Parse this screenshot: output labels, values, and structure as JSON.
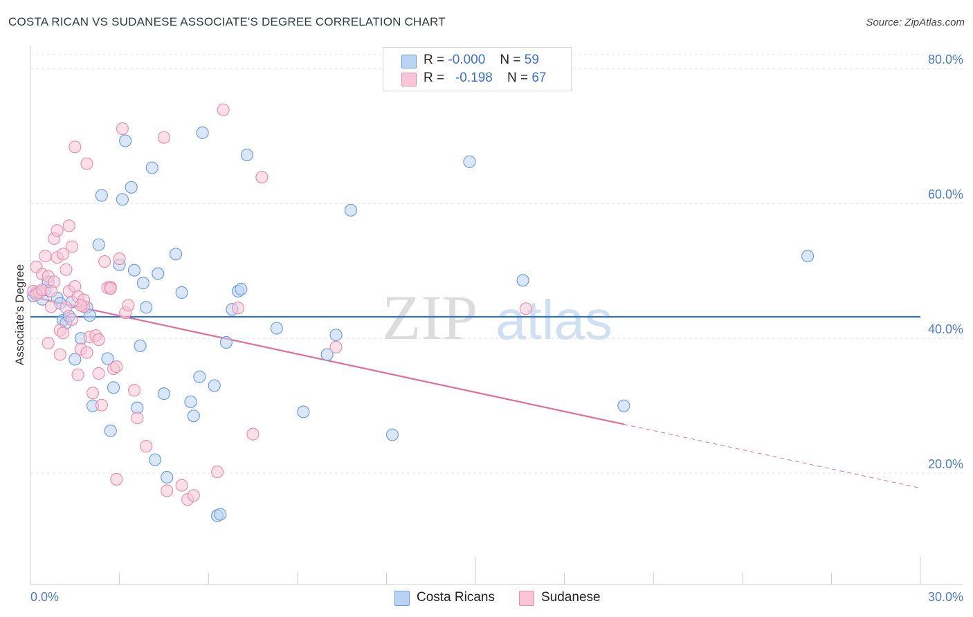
{
  "title": "COSTA RICAN VS SUDANESE ASSOCIATE'S DEGREE CORRELATION CHART",
  "source": "Source: ZipAtlas.com",
  "watermark": {
    "zip": "ZIP",
    "atlas": "atlas"
  },
  "legend": {
    "r_label": "R =",
    "n_label": "N =",
    "rows": [
      {
        "name": "Costa Ricans",
        "r": "-0.000",
        "n": "59",
        "fill": "#b9d3f3",
        "stroke": "#6d9ee0"
      },
      {
        "name": "Sudanese",
        "r": "-0.198",
        "n": "67",
        "fill": "#f8c6d6",
        "stroke": "#ea8fb0"
      }
    ]
  },
  "chart_data": {
    "type": "scatter",
    "title": "COSTA RICAN VS SUDANESE ASSOCIATE'S DEGREE CORRELATION CHART",
    "xlabel": "",
    "ylabel": "Associate's Degree",
    "xlim": [
      0,
      30
    ],
    "ylim": [
      3.5,
      83
    ],
    "x_tick_labels": {
      "0": "0.0%",
      "30": "30.0%"
    },
    "y_ticks": [
      20,
      40,
      60,
      80
    ],
    "y_tick_labels": [
      "20.0%",
      "40.0%",
      "60.0%",
      "80.0%"
    ],
    "grid": true,
    "legend_position": "bottom-center",
    "series": [
      {
        "name": "Costa Ricans",
        "color": "#6d9ee0",
        "fill": "#b9d3f3",
        "line_color": "#2e6fd0",
        "trend": {
          "x0": 0,
          "y0": 43.2,
          "x1": 30,
          "y1": 43.2,
          "dashed_from": null
        },
        "points": [
          [
            0.1,
            46.3
          ],
          [
            0.4,
            45.8
          ],
          [
            0.5,
            47.2
          ],
          [
            0.6,
            48.4
          ],
          [
            0.9,
            46.0
          ],
          [
            1.0,
            45.2
          ],
          [
            1.1,
            42.7
          ],
          [
            1.2,
            42.3
          ],
          [
            1.3,
            43.3
          ],
          [
            1.4,
            45.4
          ],
          [
            1.5,
            36.9
          ],
          [
            1.7,
            40.0
          ],
          [
            1.9,
            44.6
          ],
          [
            2.0,
            43.4
          ],
          [
            2.1,
            30.0
          ],
          [
            2.3,
            53.9
          ],
          [
            2.4,
            61.2
          ],
          [
            2.6,
            37.0
          ],
          [
            2.7,
            26.3
          ],
          [
            2.8,
            32.7
          ],
          [
            3.0,
            50.9
          ],
          [
            3.1,
            60.6
          ],
          [
            3.2,
            69.3
          ],
          [
            3.4,
            62.4
          ],
          [
            3.5,
            50.1
          ],
          [
            3.6,
            29.7
          ],
          [
            3.7,
            38.9
          ],
          [
            3.8,
            48.2
          ],
          [
            3.9,
            44.6
          ],
          [
            4.1,
            65.3
          ],
          [
            4.2,
            22.0
          ],
          [
            4.3,
            49.6
          ],
          [
            4.5,
            31.8
          ],
          [
            4.6,
            19.4
          ],
          [
            4.9,
            52.5
          ],
          [
            5.1,
            46.8
          ],
          [
            5.4,
            30.6
          ],
          [
            5.5,
            28.5
          ],
          [
            5.7,
            34.3
          ],
          [
            5.8,
            70.5
          ],
          [
            6.2,
            33.0
          ],
          [
            6.3,
            13.7
          ],
          [
            6.4,
            13.9
          ],
          [
            6.6,
            39.4
          ],
          [
            6.8,
            44.3
          ],
          [
            7.0,
            47.0
          ],
          [
            7.1,
            47.3
          ],
          [
            7.3,
            67.2
          ],
          [
            8.3,
            41.5
          ],
          [
            9.2,
            29.1
          ],
          [
            10.0,
            37.6
          ],
          [
            10.3,
            40.5
          ],
          [
            10.8,
            59.0
          ],
          [
            12.2,
            25.7
          ],
          [
            14.8,
            66.2
          ],
          [
            16.6,
            48.6
          ],
          [
            20.0,
            30.0
          ],
          [
            26.2,
            52.2
          ],
          [
            0.2,
            46.8
          ]
        ]
      },
      {
        "name": "Sudanese",
        "color": "#ea8fb0",
        "fill": "#f8c6d6",
        "line_color": "#e46c98",
        "trend": {
          "x0": 0,
          "y0": 46.2,
          "x1": 30,
          "y1": 17.8,
          "dashed_from": 20.0
        },
        "points": [
          [
            0.1,
            47.0
          ],
          [
            0.2,
            50.6
          ],
          [
            0.3,
            46.8
          ],
          [
            0.4,
            49.5
          ],
          [
            0.5,
            52.2
          ],
          [
            0.6,
            49.2
          ],
          [
            0.6,
            39.3
          ],
          [
            0.7,
            44.7
          ],
          [
            0.8,
            54.8
          ],
          [
            0.8,
            48.4
          ],
          [
            0.9,
            52.0
          ],
          [
            0.9,
            56.0
          ],
          [
            1.0,
            41.2
          ],
          [
            1.0,
            37.6
          ],
          [
            1.1,
            52.5
          ],
          [
            1.2,
            50.2
          ],
          [
            1.2,
            44.6
          ],
          [
            1.3,
            56.7
          ],
          [
            1.3,
            47.0
          ],
          [
            1.4,
            53.6
          ],
          [
            1.4,
            42.8
          ],
          [
            1.5,
            68.4
          ],
          [
            1.5,
            47.7
          ],
          [
            1.6,
            46.2
          ],
          [
            1.6,
            34.6
          ],
          [
            1.7,
            38.4
          ],
          [
            1.8,
            44.7
          ],
          [
            1.8,
            45.7
          ],
          [
            1.9,
            65.9
          ],
          [
            1.9,
            37.9
          ],
          [
            2.0,
            40.2
          ],
          [
            2.1,
            31.9
          ],
          [
            2.2,
            40.4
          ],
          [
            2.3,
            34.8
          ],
          [
            2.3,
            39.8
          ],
          [
            2.4,
            30.1
          ],
          [
            2.5,
            51.4
          ],
          [
            2.6,
            47.5
          ],
          [
            2.7,
            47.6
          ],
          [
            2.8,
            35.5
          ],
          [
            2.9,
            35.8
          ],
          [
            2.9,
            19.1
          ],
          [
            3.0,
            51.8
          ],
          [
            3.1,
            71.1
          ],
          [
            3.2,
            43.8
          ],
          [
            3.3,
            44.9
          ],
          [
            3.5,
            32.3
          ],
          [
            3.6,
            28.2
          ],
          [
            3.9,
            24.0
          ],
          [
            4.5,
            69.8
          ],
          [
            4.6,
            17.4
          ],
          [
            5.1,
            18.2
          ],
          [
            5.3,
            16.1
          ],
          [
            5.5,
            16.7
          ],
          [
            6.3,
            20.2
          ],
          [
            6.5,
            73.9
          ],
          [
            7.0,
            44.5
          ],
          [
            7.5,
            25.8
          ],
          [
            7.8,
            63.9
          ],
          [
            10.3,
            38.7
          ],
          [
            16.7,
            44.4
          ],
          [
            0.2,
            46.5
          ],
          [
            0.4,
            47.2
          ],
          [
            0.7,
            47.0
          ],
          [
            1.7,
            44.9
          ],
          [
            2.7,
            47.4
          ],
          [
            1.1,
            40.8
          ]
        ]
      }
    ]
  }
}
